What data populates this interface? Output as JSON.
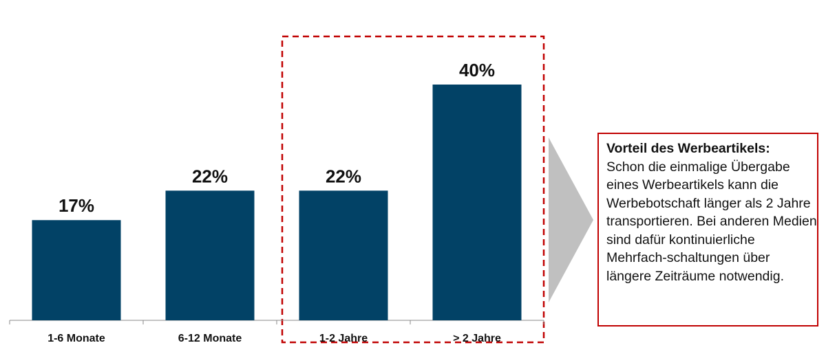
{
  "chart_data": {
    "type": "bar",
    "categories": [
      "1-6 Monate",
      "6-12 Monate",
      "1-2 Jahre",
      "> 2 Jahre"
    ],
    "values": [
      17,
      22,
      22,
      40
    ],
    "data_labels": [
      "17%",
      "22%",
      "22%",
      "40%"
    ],
    "ylim": [
      0,
      40
    ],
    "grid": false,
    "highlighted_categories": [
      "1-2 Jahre",
      "> 2 Jahre"
    ],
    "colors": {
      "bar": "#024266",
      "highlight_box": "#c00000",
      "arrow": "#c0c0c0",
      "axis": "#888888"
    }
  },
  "callout": {
    "title": "Vorteil des Werbeartikels:",
    "text": "Schon die einmalige Übergabe eines Werbeartikels kann die Werbebotschaft länger als 2 Jahre transportieren. Bei anderen Medien sind dafür kontinuierliche Mehrfach-schaltungen über längere Zeiträume notwendig."
  }
}
